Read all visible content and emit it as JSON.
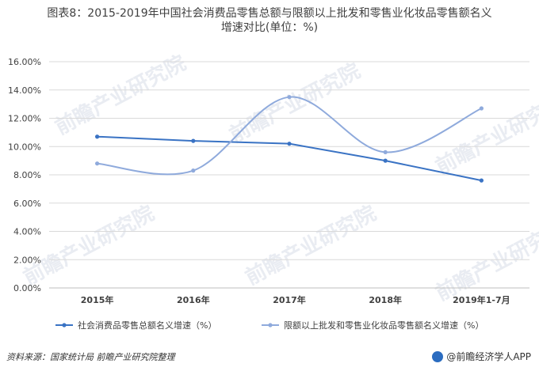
{
  "chart_data": {
    "type": "line",
    "title_lines": [
      "图表8：2015-2019年中国社会消费品零售总额与限额以上批发和零售业化妆品零售额名义",
      "增速对比(单位：%)"
    ],
    "categories": [
      "2015年",
      "2016年",
      "2017年",
      "2018年",
      "2019年1-7月"
    ],
    "y_ticks": [
      "0.00%",
      "2.00%",
      "4.00%",
      "6.00%",
      "8.00%",
      "10.00%",
      "12.00%",
      "14.00%",
      "16.00%"
    ],
    "ylim": [
      0,
      16
    ],
    "grid": true,
    "legend_position": "bottom",
    "series": [
      {
        "name": "社会消费品零售总额名义增速（%）",
        "values": [
          10.7,
          10.4,
          10.2,
          9.0,
          7.6
        ],
        "color": "#3a73c4",
        "smooth": false
      },
      {
        "name": "限额以上批发和零售业化妆品零售额名义增速（%）",
        "values": [
          8.8,
          8.3,
          13.5,
          9.6,
          12.7
        ],
        "color": "#8faadc",
        "smooth": true
      }
    ]
  },
  "footer": {
    "source": "资料来源：国家统计局 前瞻产业研究院整理",
    "brand": "@前瞻经济学人APP"
  },
  "watermark_text": "前瞻产业研究院"
}
